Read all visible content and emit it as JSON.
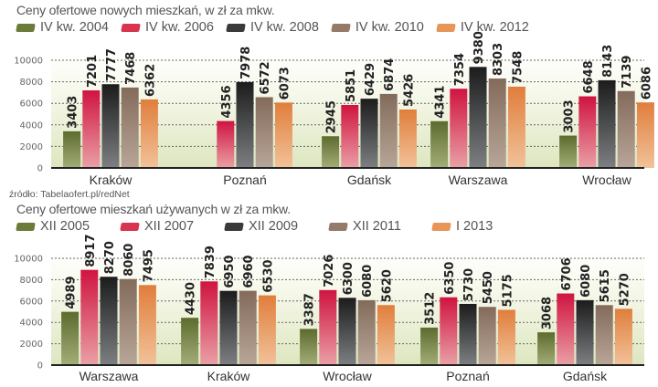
{
  "chart_data": [
    {
      "type": "bar",
      "title": "Ceny ofertowe nowych mieszkań, w zł za mkw.",
      "xlabel": "",
      "ylabel": "",
      "ylim": [
        0,
        10000
      ],
      "yticks": [
        0,
        2000,
        4000,
        6000,
        8000,
        10000
      ],
      "grid": true,
      "legend": "top-left",
      "categories": [
        "Kraków",
        "Poznań",
        "Gdańsk",
        "Warszawa",
        "Wrocław"
      ],
      "series": [
        {
          "name": "IV kw. 2004",
          "color": "#6b7b3a",
          "values": [
            3403,
            null,
            2945,
            4341,
            3003
          ]
        },
        {
          "name": "IV kw. 2006",
          "color": "#d8334f",
          "values": [
            7201,
            4356,
            5851,
            7354,
            6648
          ]
        },
        {
          "name": "IV kw. 2008",
          "color": "#3a3a3a",
          "values": [
            7777,
            7978,
            6429,
            9380,
            8143
          ]
        },
        {
          "name": "IV kw. 2010",
          "color": "#957a6a",
          "values": [
            7468,
            6572,
            6874,
            8303,
            7139
          ]
        },
        {
          "name": "IV kw. 2012",
          "color": "#e8955a",
          "values": [
            6362,
            6073,
            5426,
            7548,
            6086
          ]
        }
      ],
      "source": "źródło: Tabelaofert.pl/redNet"
    },
    {
      "type": "bar",
      "title": "Ceny ofertowe mieszkań używanych w zł za mkw.",
      "xlabel": "",
      "ylabel": "",
      "ylim": [
        0,
        10000
      ],
      "yticks": [
        0,
        2000,
        4000,
        6000,
        8000,
        10000
      ],
      "grid": true,
      "legend": "top-left",
      "categories": [
        "Warszawa",
        "Kraków",
        "Wrocław",
        "Poznań",
        "Gdańsk"
      ],
      "series": [
        {
          "name": "XII 2005",
          "color": "#6b7b3a",
          "values": [
            4989,
            4430,
            3387,
            3512,
            3068
          ]
        },
        {
          "name": "XII 2007",
          "color": "#d8334f",
          "values": [
            8917,
            7839,
            7026,
            6350,
            6706
          ]
        },
        {
          "name": "XII 2009",
          "color": "#3a3a3a",
          "values": [
            8270,
            6950,
            6300,
            5730,
            6080
          ]
        },
        {
          "name": "XII 2011",
          "color": "#957a6a",
          "values": [
            8060,
            6960,
            6080,
            5450,
            5615
          ]
        },
        {
          "name": "I 2013",
          "color": "#e8955a",
          "values": [
            7495,
            6530,
            5620,
            5175,
            5270
          ]
        }
      ]
    }
  ]
}
